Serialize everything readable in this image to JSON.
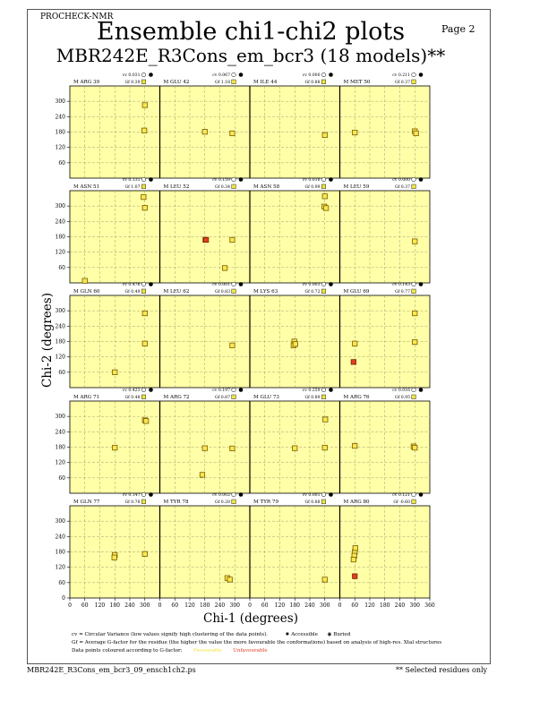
{
  "header": {
    "program": "PROCHECK-NMR",
    "page": "Page  2"
  },
  "title": "Ensemble chi1-chi2 plots",
  "subtitle": "MBR242E_R3Cons_em_bcr3 (18 models)**",
  "colors": {
    "panel_bg": "#ffffa8",
    "favourable": "#f0e442",
    "unfavourable": "#e04020",
    "core_point": "#f7e850",
    "core_point_ring": "#7a5a00"
  },
  "chart_data": {
    "type": "scatter",
    "xlabel": "Chi-1 (degrees)",
    "ylabel": "Chi-2 (degrees)",
    "xlim": [
      0,
      360
    ],
    "ylim": [
      0,
      360
    ],
    "x_ticks": [
      0,
      60,
      120,
      180,
      240,
      300,
      360
    ],
    "y_ticks": [
      60,
      120,
      180,
      240,
      300
    ],
    "y_ticks_bottom_row": [
      0,
      60,
      120,
      180,
      240,
      300
    ],
    "grid": true,
    "panels": [
      {
        "label": "M ARG 39",
        "cv": "cv 0.031",
        "gf": "Gf  0.39",
        "points": [
          [
            300,
            285
          ],
          [
            298,
            186
          ]
        ]
      },
      {
        "label": "M GLU 42",
        "cv": "cv 0.067",
        "gf": "Gf  1.18",
        "points": [
          [
            180,
            181
          ],
          [
            290,
            175
          ]
        ]
      },
      {
        "label": "M ILE 44",
        "cv": "cv 0.000",
        "gf": "Gf  0.88",
        "points": [
          [
            300,
            168
          ]
        ]
      },
      {
        "label": "M MET 50",
        "cv": "cv 0.211",
        "gf": "Gf  0.37",
        "points": [
          [
            60,
            178
          ],
          [
            300,
            183
          ],
          [
            305,
            175
          ]
        ]
      },
      {
        "label": "M ASN 51",
        "cv": "cv 0.131",
        "gf": "Gf  1.07",
        "points": [
          [
            295,
            335
          ],
          [
            300,
            293
          ],
          [
            60,
            8
          ]
        ]
      },
      {
        "label": "M LEU 52",
        "cv": "cv 0.159",
        "gf": "Gf  0.34",
        "points": [
          [
            182,
            168
          ],
          [
            290,
            168
          ],
          [
            260,
            58
          ]
        ],
        "unfav": [
          [
            185,
            168
          ]
        ]
      },
      {
        "label": "M ASN 58",
        "cv": "cv 0.016",
        "gf": "Gf  0.99",
        "points": [
          [
            300,
            338
          ],
          [
            298,
            298
          ],
          [
            305,
            292
          ]
        ]
      },
      {
        "label": "M LEU 59",
        "cv": "cv 0.000",
        "gf": "Gf  0.37",
        "points": [
          [
            300,
            162
          ]
        ]
      },
      {
        "label": "M GLN 60",
        "cv": "cv 0.476",
        "gf": "Gf  0.49",
        "points": [
          [
            300,
            290
          ],
          [
            300,
            172
          ],
          [
            180,
            60
          ]
        ]
      },
      {
        "label": "M LEU 62",
        "cv": "cv 0.001",
        "gf": "Gf  0.83",
        "points": [
          [
            290,
            165
          ]
        ]
      },
      {
        "label": "M LYS 63",
        "cv": "cv 0.003",
        "gf": "Gf  0.72",
        "points": [
          [
            178,
            180
          ],
          [
            175,
            165
          ],
          [
            182,
            170
          ]
        ]
      },
      {
        "label": "M GLU 69",
        "cv": "cv 0.143",
        "gf": "Gf  0.77",
        "points": [
          [
            300,
            290
          ],
          [
            300,
            178
          ],
          [
            60,
            172
          ]
        ],
        "unfav": [
          [
            55,
            100
          ]
        ]
      },
      {
        "label": "M ARG 71",
        "cv": "cv 0.423",
        "gf": "Gf  0.48",
        "points": [
          [
            180,
            178
          ],
          [
            300,
            285
          ],
          [
            305,
            282
          ]
        ]
      },
      {
        "label": "M ARG 72",
        "cv": "cv 0.197",
        "gf": "Gf  0.87",
        "points": [
          [
            180,
            176
          ],
          [
            290,
            175
          ],
          [
            170,
            72
          ]
        ]
      },
      {
        "label": "M GLU 73",
        "cv": "cv 0.259",
        "gf": "Gf  0.89",
        "points": [
          [
            180,
            176
          ],
          [
            300,
            178
          ],
          [
            302,
            288
          ]
        ]
      },
      {
        "label": "M ARG 76",
        "cv": "cv 0.016",
        "gf": "Gf  0.95",
        "points": [
          [
            60,
            185
          ],
          [
            295,
            183
          ],
          [
            300,
            178
          ]
        ]
      },
      {
        "label": "M GLN 77",
        "cv": "cv 0.147",
        "gf": "Gf  0.78",
        "points": [
          [
            180,
            168
          ],
          [
            178,
            158
          ],
          [
            300,
            172
          ]
        ]
      },
      {
        "label": "M TYR 78",
        "cv": "cv 0.002",
        "gf": "Gf  0.20",
        "points": [
          [
            270,
            78
          ],
          [
            280,
            72
          ]
        ]
      },
      {
        "label": "M TYR 79",
        "cv": "cv 0.001",
        "gf": "Gf  0.88",
        "points": [
          [
            300,
            72
          ]
        ]
      },
      {
        "label": "M ARG 80",
        "cv": "cv 0.121",
        "gf": "Gf -0.60",
        "points": [
          [
            60,
            180
          ],
          [
            58,
            165
          ],
          [
            62,
            195
          ],
          [
            55,
            150
          ]
        ],
        "unfav": [
          [
            60,
            85
          ]
        ]
      }
    ]
  },
  "legend": {
    "line1": "cv = Circular Variance (low values signify high clustering of the data points).",
    "accessible": "Accessible",
    "buried": "Buried",
    "line2": "Gf = Average G-factor for the residue (the higher the value the more favourable the conformations) based on analysis of high-res. Xtal structures",
    "line3": "Data points coloured according to G-factor:",
    "favourable": "Favourable",
    "unfavourable": "Unfavourable"
  },
  "footer": {
    "file": "MBR242E_R3Cons_em_bcr3_09_ensch1ch2.ps",
    "note": "** Selected residues only"
  }
}
